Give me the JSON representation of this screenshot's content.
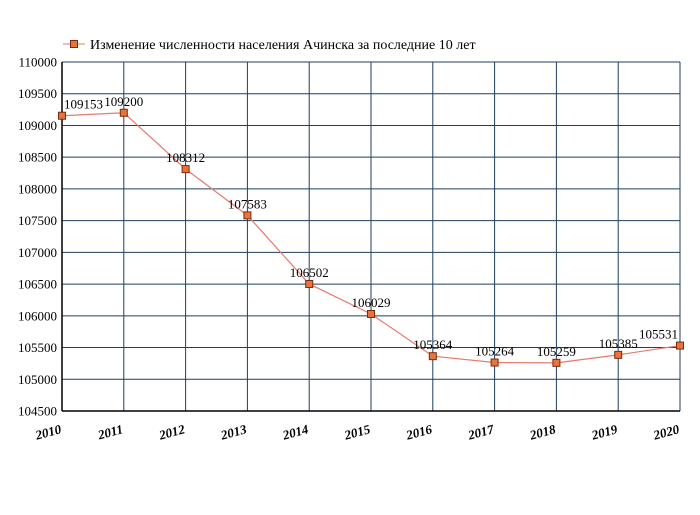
{
  "chart_data": {
    "type": "line",
    "title": "",
    "xlabel": "",
    "ylabel": "",
    "legend_position": "top-left",
    "grid": true,
    "x": [
      "2010",
      "2011",
      "2012",
      "2013",
      "2014",
      "2015",
      "2016",
      "2017",
      "2018",
      "2019",
      "2020"
    ],
    "ylim": [
      104500,
      110000
    ],
    "yticks": [
      "104500",
      "105000",
      "105500",
      "106000",
      "106500",
      "107000",
      "107500",
      "108000",
      "108500",
      "109000",
      "109500",
      "110000"
    ],
    "series": [
      {
        "name": "Изменение численности населения Ачинска за последние 10 лет",
        "values": [
          109153,
          109200,
          108312,
          107583,
          106502,
          106029,
          105364,
          105264,
          105259,
          105385,
          105531
        ],
        "labels": [
          "109153",
          "109200",
          "108312",
          "107583",
          "106502",
          "106029",
          "105364",
          "105264",
          "105259",
          "105385",
          "105531"
        ]
      }
    ],
    "colors": {
      "line": "#e87a6e",
      "marker_fill": "#e8743c",
      "marker_stroke": "#7a2a10",
      "grid": "#1f3f5f"
    }
  }
}
